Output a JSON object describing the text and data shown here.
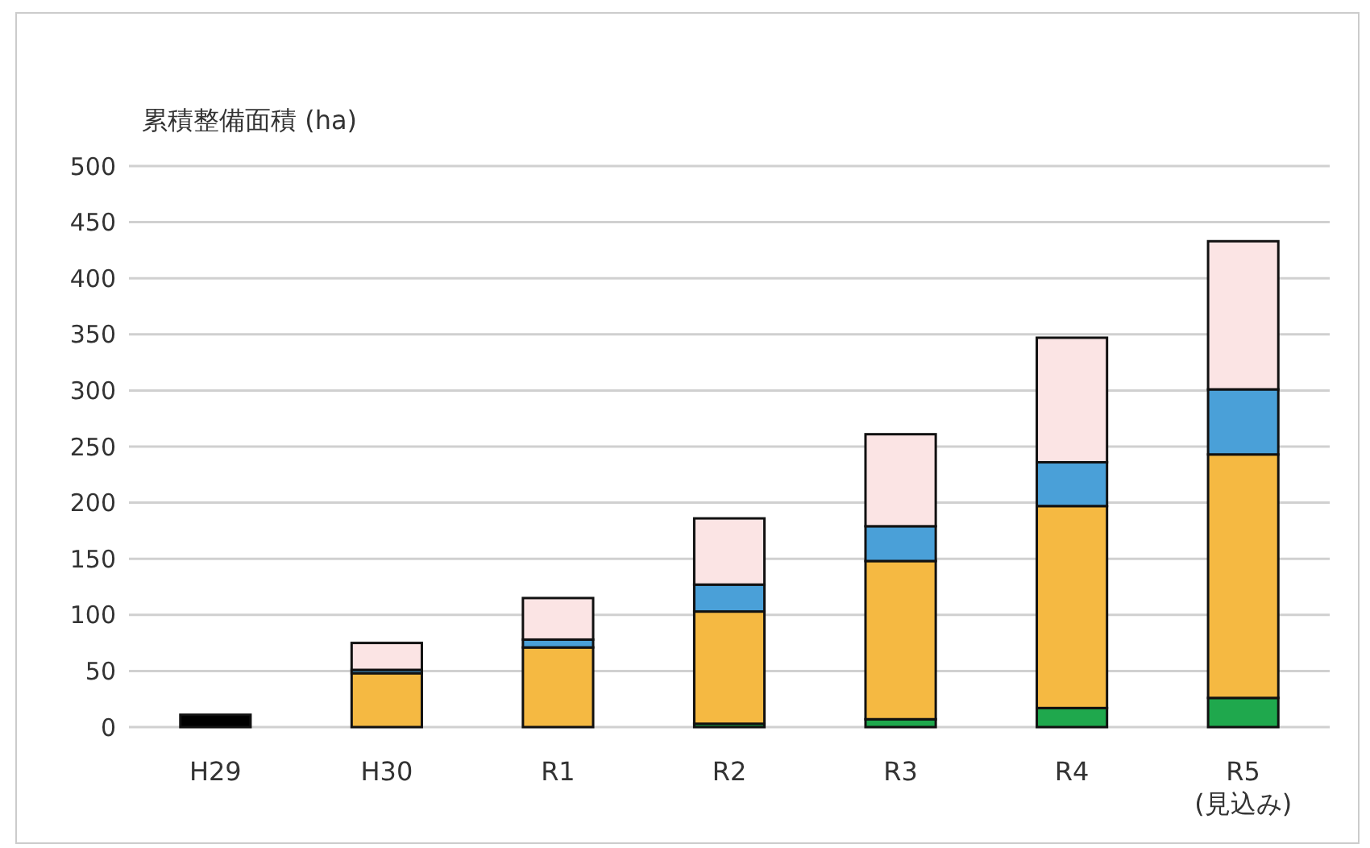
{
  "chart_data": {
    "type": "bar",
    "stacked": true,
    "ylabel": "累積整備面積 (ha)",
    "categories": [
      "H29",
      "H30",
      "R1",
      "R2",
      "R3",
      "R4",
      "R5\n(見込み)"
    ],
    "series": [
      {
        "color": "#000000",
        "values": [
          11,
          null,
          null,
          null,
          null,
          null,
          null
        ]
      },
      {
        "color": "#1fa84d",
        "values": [
          null,
          null,
          null,
          3,
          7,
          17,
          26
        ]
      },
      {
        "color": "#f5b942",
        "values": [
          null,
          48,
          71,
          100,
          141,
          180,
          217
        ]
      },
      {
        "color": "#4aa0d8",
        "values": [
          null,
          3,
          7,
          24,
          31,
          39,
          58
        ]
      },
      {
        "color": "#fbe4e4",
        "values": [
          null,
          24,
          37,
          59,
          82,
          111,
          132
        ]
      }
    ],
    "ylim": [
      0,
      500
    ],
    "yticks": [
      0,
      50,
      100,
      150,
      200,
      250,
      300,
      350,
      400,
      450,
      500
    ],
    "grid": "y"
  }
}
